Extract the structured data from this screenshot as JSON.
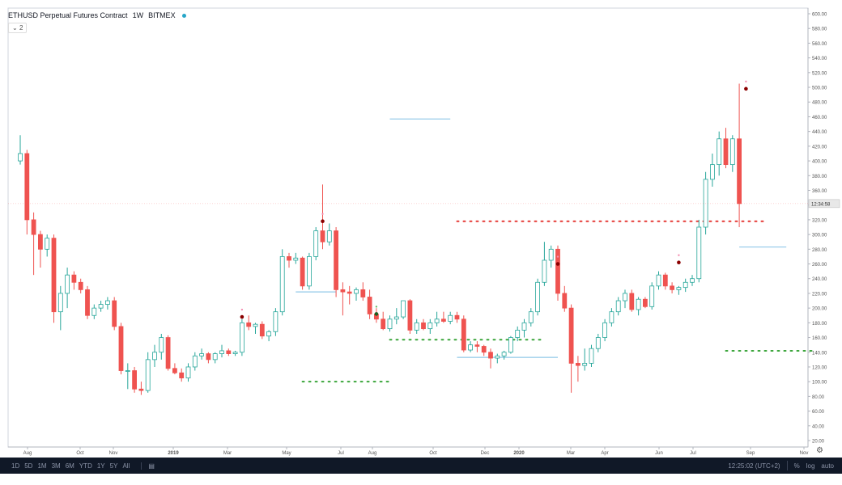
{
  "header": {
    "title": "ETHUSD Perpetual Futures Contract",
    "interval": "1W",
    "exchange": "BITMEX",
    "collapse_label": "2"
  },
  "price_axis": {
    "ticks": [
      "600.00",
      "580.00",
      "560.00",
      "540.00",
      "520.00",
      "500.00",
      "480.00",
      "460.00",
      "440.00",
      "420.00",
      "400.00",
      "380.00",
      "360.00",
      "340.00",
      "320.00",
      "300.00",
      "280.00",
      "260.00",
      "240.00",
      "220.00",
      "200.00",
      "180.00",
      "160.00",
      "140.00",
      "120.00",
      "100.00",
      "80.00",
      "60.00",
      "40.00",
      "20.00"
    ],
    "countdown_label": "12:34:58"
  },
  "time_axis": {
    "labels": [
      "Aug",
      "Oct",
      "Nov",
      "2019",
      "Mar",
      "May",
      "Jul",
      "Aug",
      "Oct",
      "Dec",
      "2020",
      "Mar",
      "Apr",
      "Jun",
      "Jul",
      "Sep",
      "Nov"
    ]
  },
  "bottom_bar": {
    "ranges": [
      "1D",
      "5D",
      "1M",
      "3M",
      "6M",
      "YTD",
      "1Y",
      "5Y",
      "All"
    ],
    "clock": "12:25:02 (UTC+2)",
    "percent": "%",
    "log": "log",
    "auto": "auto"
  },
  "colors": {
    "up": "#26a69a",
    "down": "#ef5350",
    "up_body": "#ffffff",
    "support": "#3aa53a",
    "resistance": "#e53935",
    "level_line": "#90c8e8"
  },
  "chart_data": {
    "type": "candlestick",
    "title": "ETHUSD Perpetual Futures Contract",
    "interval": "1W",
    "ylim": [
      20,
      600
    ],
    "candles": [
      {
        "o": 400,
        "h": 435,
        "l": 395,
        "c": 410
      },
      {
        "o": 410,
        "h": 415,
        "l": 300,
        "c": 320
      },
      {
        "o": 320,
        "h": 330,
        "l": 245,
        "c": 300
      },
      {
        "o": 300,
        "h": 305,
        "l": 255,
        "c": 280
      },
      {
        "o": 280,
        "h": 300,
        "l": 270,
        "c": 295
      },
      {
        "o": 295,
        "h": 300,
        "l": 180,
        "c": 195
      },
      {
        "o": 195,
        "h": 230,
        "l": 170,
        "c": 220
      },
      {
        "o": 220,
        "h": 255,
        "l": 200,
        "c": 245
      },
      {
        "o": 245,
        "h": 250,
        "l": 225,
        "c": 235
      },
      {
        "o": 235,
        "h": 240,
        "l": 220,
        "c": 225
      },
      {
        "o": 225,
        "h": 230,
        "l": 185,
        "c": 190
      },
      {
        "o": 190,
        "h": 205,
        "l": 185,
        "c": 200
      },
      {
        "o": 200,
        "h": 210,
        "l": 195,
        "c": 205
      },
      {
        "o": 205,
        "h": 215,
        "l": 198,
        "c": 210
      },
      {
        "o": 210,
        "h": 215,
        "l": 170,
        "c": 175
      },
      {
        "o": 175,
        "h": 180,
        "l": 110,
        "c": 115
      },
      {
        "o": 115,
        "h": 125,
        "l": 90,
        "c": 115
      },
      {
        "o": 115,
        "h": 120,
        "l": 85,
        "c": 90
      },
      {
        "o": 90,
        "h": 100,
        "l": 82,
        "c": 88
      },
      {
        "o": 88,
        "h": 140,
        "l": 85,
        "c": 130
      },
      {
        "o": 130,
        "h": 150,
        "l": 120,
        "c": 140
      },
      {
        "o": 140,
        "h": 165,
        "l": 130,
        "c": 160
      },
      {
        "o": 160,
        "h": 163,
        "l": 115,
        "c": 118
      },
      {
        "o": 118,
        "h": 125,
        "l": 110,
        "c": 112
      },
      {
        "o": 112,
        "h": 118,
        "l": 100,
        "c": 105
      },
      {
        "o": 105,
        "h": 125,
        "l": 100,
        "c": 120
      },
      {
        "o": 120,
        "h": 140,
        "l": 115,
        "c": 135
      },
      {
        "o": 135,
        "h": 145,
        "l": 130,
        "c": 138
      },
      {
        "o": 138,
        "h": 140,
        "l": 125,
        "c": 130
      },
      {
        "o": 130,
        "h": 140,
        "l": 125,
        "c": 138
      },
      {
        "o": 138,
        "h": 150,
        "l": 133,
        "c": 142
      },
      {
        "o": 142,
        "h": 145,
        "l": 135,
        "c": 138
      },
      {
        "o": 138,
        "h": 142,
        "l": 135,
        "c": 140
      },
      {
        "o": 140,
        "h": 185,
        "l": 135,
        "c": 180
      },
      {
        "o": 180,
        "h": 190,
        "l": 170,
        "c": 175
      },
      {
        "o": 175,
        "h": 180,
        "l": 165,
        "c": 178
      },
      {
        "o": 178,
        "h": 182,
        "l": 158,
        "c": 162
      },
      {
        "o": 162,
        "h": 170,
        "l": 155,
        "c": 168
      },
      {
        "o": 168,
        "h": 200,
        "l": 162,
        "c": 195
      },
      {
        "o": 195,
        "h": 280,
        "l": 190,
        "c": 270
      },
      {
        "o": 270,
        "h": 275,
        "l": 255,
        "c": 265
      },
      {
        "o": 265,
        "h": 275,
        "l": 260,
        "c": 268
      },
      {
        "o": 268,
        "h": 270,
        "l": 225,
        "c": 230
      },
      {
        "o": 230,
        "h": 275,
        "l": 225,
        "c": 270
      },
      {
        "o": 270,
        "h": 310,
        "l": 265,
        "c": 305
      },
      {
        "o": 305,
        "h": 368,
        "l": 280,
        "c": 290
      },
      {
        "o": 290,
        "h": 315,
        "l": 285,
        "c": 305
      },
      {
        "o": 305,
        "h": 310,
        "l": 215,
        "c": 225
      },
      {
        "o": 225,
        "h": 235,
        "l": 190,
        "c": 222
      },
      {
        "o": 222,
        "h": 230,
        "l": 205,
        "c": 220
      },
      {
        "o": 220,
        "h": 228,
        "l": 210,
        "c": 225
      },
      {
        "o": 225,
        "h": 235,
        "l": 210,
        "c": 215
      },
      {
        "o": 215,
        "h": 225,
        "l": 185,
        "c": 192
      },
      {
        "o": 192,
        "h": 200,
        "l": 180,
        "c": 185
      },
      {
        "o": 185,
        "h": 195,
        "l": 170,
        "c": 172
      },
      {
        "o": 172,
        "h": 190,
        "l": 168,
        "c": 185
      },
      {
        "o": 185,
        "h": 200,
        "l": 178,
        "c": 188
      },
      {
        "o": 188,
        "h": 210,
        "l": 185,
        "c": 210
      },
      {
        "o": 210,
        "h": 212,
        "l": 165,
        "c": 170
      },
      {
        "o": 170,
        "h": 185,
        "l": 165,
        "c": 180
      },
      {
        "o": 180,
        "h": 185,
        "l": 170,
        "c": 172
      },
      {
        "o": 172,
        "h": 185,
        "l": 165,
        "c": 180
      },
      {
        "o": 180,
        "h": 195,
        "l": 175,
        "c": 185
      },
      {
        "o": 185,
        "h": 195,
        "l": 180,
        "c": 182
      },
      {
        "o": 182,
        "h": 195,
        "l": 178,
        "c": 190
      },
      {
        "o": 190,
        "h": 195,
        "l": 180,
        "c": 185
      },
      {
        "o": 185,
        "h": 190,
        "l": 140,
        "c": 143
      },
      {
        "o": 143,
        "h": 155,
        "l": 140,
        "c": 150
      },
      {
        "o": 150,
        "h": 155,
        "l": 140,
        "c": 148
      },
      {
        "o": 148,
        "h": 150,
        "l": 135,
        "c": 140
      },
      {
        "o": 140,
        "h": 145,
        "l": 118,
        "c": 132
      },
      {
        "o": 132,
        "h": 138,
        "l": 125,
        "c": 135
      },
      {
        "o": 135,
        "h": 142,
        "l": 130,
        "c": 140
      },
      {
        "o": 140,
        "h": 162,
        "l": 138,
        "c": 160
      },
      {
        "o": 160,
        "h": 175,
        "l": 155,
        "c": 170
      },
      {
        "o": 170,
        "h": 185,
        "l": 160,
        "c": 180
      },
      {
        "o": 180,
        "h": 200,
        "l": 175,
        "c": 195
      },
      {
        "o": 195,
        "h": 240,
        "l": 190,
        "c": 235
      },
      {
        "o": 235,
        "h": 290,
        "l": 230,
        "c": 265
      },
      {
        "o": 265,
        "h": 285,
        "l": 255,
        "c": 280
      },
      {
        "o": 280,
        "h": 285,
        "l": 210,
        "c": 220
      },
      {
        "o": 220,
        "h": 230,
        "l": 195,
        "c": 200
      },
      {
        "o": 200,
        "h": 205,
        "l": 85,
        "c": 125
      },
      {
        "o": 125,
        "h": 135,
        "l": 100,
        "c": 122
      },
      {
        "o": 122,
        "h": 145,
        "l": 115,
        "c": 125
      },
      {
        "o": 125,
        "h": 150,
        "l": 120,
        "c": 145
      },
      {
        "o": 145,
        "h": 165,
        "l": 140,
        "c": 160
      },
      {
        "o": 160,
        "h": 185,
        "l": 155,
        "c": 180
      },
      {
        "o": 180,
        "h": 200,
        "l": 175,
        "c": 195
      },
      {
        "o": 195,
        "h": 215,
        "l": 190,
        "c": 210
      },
      {
        "o": 210,
        "h": 225,
        "l": 200,
        "c": 220
      },
      {
        "o": 220,
        "h": 225,
        "l": 195,
        "c": 198
      },
      {
        "o": 198,
        "h": 215,
        "l": 190,
        "c": 212
      },
      {
        "o": 212,
        "h": 215,
        "l": 200,
        "c": 202
      },
      {
        "o": 202,
        "h": 235,
        "l": 198,
        "c": 230
      },
      {
        "o": 230,
        "h": 250,
        "l": 225,
        "c": 245
      },
      {
        "o": 245,
        "h": 248,
        "l": 225,
        "c": 230
      },
      {
        "o": 230,
        "h": 235,
        "l": 220,
        "c": 225
      },
      {
        "o": 225,
        "h": 230,
        "l": 218,
        "c": 228
      },
      {
        "o": 228,
        "h": 240,
        "l": 222,
        "c": 235
      },
      {
        "o": 235,
        "h": 245,
        "l": 230,
        "c": 240
      },
      {
        "o": 240,
        "h": 320,
        "l": 235,
        "c": 310
      },
      {
        "o": 310,
        "h": 385,
        "l": 300,
        "c": 375
      },
      {
        "o": 375,
        "h": 410,
        "l": 365,
        "c": 395
      },
      {
        "o": 395,
        "h": 440,
        "l": 380,
        "c": 430
      },
      {
        "o": 430,
        "h": 445,
        "l": 390,
        "c": 395
      },
      {
        "o": 395,
        "h": 435,
        "l": 385,
        "c": 430
      },
      {
        "o": 430,
        "h": 505,
        "l": 310,
        "c": 342
      }
    ],
    "dotted_levels": [
      {
        "type": "support",
        "value": 100,
        "from": 42,
        "to": 55
      },
      {
        "type": "support",
        "value": 157,
        "from": 55,
        "to": 78
      },
      {
        "type": "resistance",
        "value": 318,
        "from": 65,
        "to": 111
      },
      {
        "type": "support",
        "value": 142,
        "from": 105,
        "to": 118
      }
    ],
    "solid_levels": [
      {
        "value": 457,
        "from": 55,
        "to": 64
      },
      {
        "value": 222,
        "from": 41,
        "to": 47
      },
      {
        "value": 133,
        "from": 65,
        "to": 80
      },
      {
        "value": 283,
        "from": 107,
        "to": 114
      }
    ],
    "signals": [
      {
        "bar": 33,
        "kind": "sell",
        "price": 188
      },
      {
        "bar": 45,
        "kind": "sell",
        "price": 318
      },
      {
        "bar": 53,
        "kind": "buy",
        "price": 192
      },
      {
        "bar": 80,
        "kind": "sell",
        "price": 260
      },
      {
        "bar": 98,
        "kind": "sell",
        "price": 262
      },
      {
        "bar": 108,
        "kind": "sell",
        "price": 498
      }
    ]
  }
}
